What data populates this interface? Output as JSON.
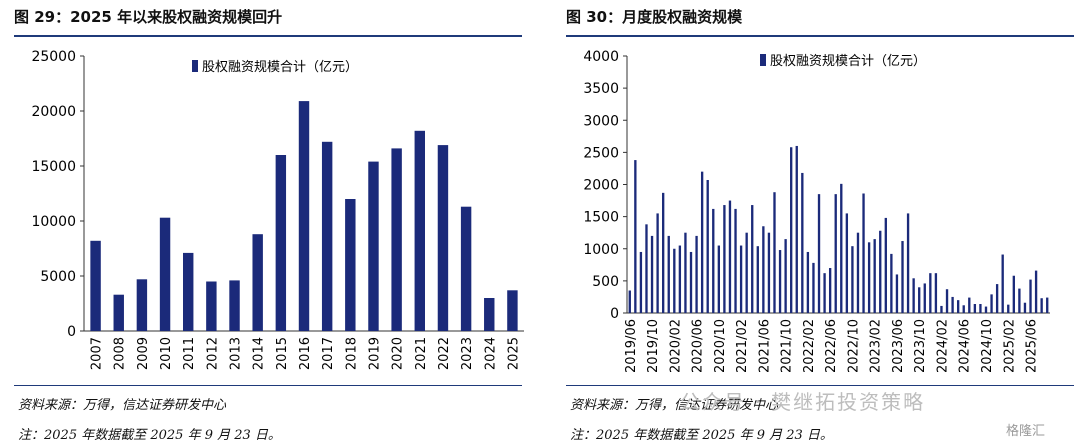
{
  "left": {
    "title": "图 29：2025 年以来股权融资规模回升",
    "source": "资料来源：万得，信达证券研发中心",
    "note": "注：2025 年数据截至 2025 年 9 月 23 日。"
  },
  "right": {
    "title": "图 30：月度股权融资规模",
    "source": "资料来源：万得，信达证券研发中心",
    "note": "注：2025 年数据截至 2025 年 9 月 23 日。"
  },
  "watermark": "公众号 · 樊继拓投资策略",
  "watermark_badge": "格隆汇",
  "colors": {
    "bar": "#1b2a7a",
    "rule": "#1f3a7a"
  },
  "chart_data": [
    {
      "type": "bar",
      "legend": "股权融资规模合计（亿元）",
      "categories": [
        "2007",
        "2008",
        "2009",
        "2010",
        "2011",
        "2012",
        "2013",
        "2014",
        "2015",
        "2016",
        "2017",
        "2018",
        "2019",
        "2020",
        "2021",
        "2022",
        "2023",
        "2024",
        "2025"
      ],
      "series": [
        {
          "name": "股权融资规模合计（亿元）",
          "values": [
            8200,
            3300,
            4700,
            10300,
            7100,
            4500,
            4600,
            8800,
            16000,
            20900,
            17200,
            12000,
            15400,
            16600,
            18200,
            16900,
            11300,
            3000,
            3700
          ]
        }
      ],
      "ylim": [
        0,
        25000
      ],
      "yticks": [
        "0",
        "5000",
        "10000",
        "15000",
        "20000",
        "25000"
      ],
      "legend_position": "top-center"
    },
    {
      "type": "bar",
      "legend": "股权融资规模合计（亿元）",
      "x_tick_labels": [
        "2019/06",
        "2019/10",
        "2020/02",
        "2020/06",
        "2020/10",
        "2021/02",
        "2021/06",
        "2021/10",
        "2022/02",
        "2022/06",
        "2022/10",
        "2023/02",
        "2023/06",
        "2023/10",
        "2024/02",
        "2024/06",
        "2024/10",
        "2025/02",
        "2025/06"
      ],
      "series": [
        {
          "name": "股权融资规模合计（亿元）",
          "values": [
            350,
            2380,
            950,
            1380,
            1200,
            1550,
            1870,
            1200,
            1000,
            1050,
            1250,
            950,
            1200,
            2200,
            2070,
            1620,
            1050,
            1680,
            1750,
            1620,
            1050,
            1250,
            1680,
            1040,
            1350,
            1250,
            1880,
            980,
            1150,
            2580,
            2600,
            2180,
            950,
            780,
            1850,
            620,
            700,
            1850,
            2010,
            1550,
            1040,
            1250,
            1860,
            1100,
            1150,
            1280,
            1480,
            920,
            600,
            1120,
            1550,
            540,
            400,
            460,
            620,
            620,
            110,
            370,
            250,
            200,
            120,
            240,
            140,
            140,
            100,
            290,
            450,
            910,
            130,
            580,
            380,
            160,
            520,
            660,
            230,
            240
          ]
        }
      ],
      "ylim": [
        0,
        4000
      ],
      "yticks": [
        "0",
        "500",
        "1000",
        "1500",
        "2000",
        "2500",
        "3000",
        "3500",
        "4000"
      ],
      "legend_position": "top-center"
    }
  ]
}
